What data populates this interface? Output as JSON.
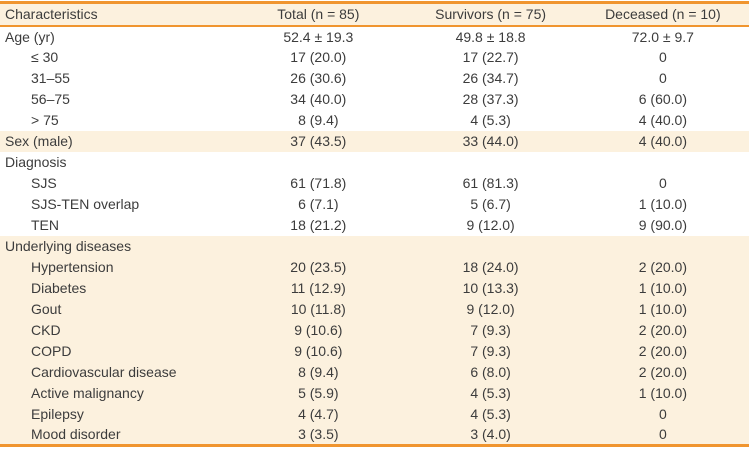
{
  "colors": {
    "accent_orange": "#F0952F",
    "band_peach": "#FCF1DE",
    "text_ink": "#3C3C3C"
  },
  "table": {
    "columns": [
      "Characteristics",
      "Total (n = 85)",
      "Survivors (n = 75)",
      "Deceased (n = 10)"
    ],
    "rows": [
      {
        "label": "Age (yr)",
        "indent": 0,
        "shaded": false,
        "values": [
          "52.4 ± 19.3",
          "49.8 ± 18.8",
          "72.0 ± 9.7"
        ]
      },
      {
        "label": "≤ 30",
        "indent": 1,
        "shaded": false,
        "values": [
          "17 (20.0)",
          "17 (22.7)",
          "0"
        ]
      },
      {
        "label": "31–55",
        "indent": 1,
        "shaded": false,
        "values": [
          "26 (30.6)",
          "26 (34.7)",
          "0"
        ]
      },
      {
        "label": "56–75",
        "indent": 1,
        "shaded": false,
        "values": [
          "34 (40.0)",
          "28 (37.3)",
          "6 (60.0)"
        ]
      },
      {
        "label": "> 75",
        "indent": 1,
        "shaded": false,
        "values": [
          "8 (9.4)",
          "4 (5.3)",
          "4 (40.0)"
        ]
      },
      {
        "label": "Sex (male)",
        "indent": 0,
        "shaded": true,
        "values": [
          "37 (43.5)",
          "33 (44.0)",
          "4 (40.0)"
        ]
      },
      {
        "label": "Diagnosis",
        "indent": 0,
        "shaded": false,
        "values": [
          "",
          "",
          ""
        ]
      },
      {
        "label": "SJS",
        "indent": 1,
        "shaded": false,
        "values": [
          "61 (71.8)",
          "61 (81.3)",
          "0"
        ]
      },
      {
        "label": "SJS-TEN overlap",
        "indent": 1,
        "shaded": false,
        "values": [
          "6 (7.1)",
          "5 (6.7)",
          "1 (10.0)"
        ]
      },
      {
        "label": "TEN",
        "indent": 1,
        "shaded": false,
        "values": [
          "18 (21.2)",
          "9 (12.0)",
          "9 (90.0)"
        ]
      },
      {
        "label": "Underlying diseases",
        "indent": 0,
        "shaded": true,
        "values": [
          "",
          "",
          ""
        ]
      },
      {
        "label": "Hypertension",
        "indent": 1,
        "shaded": true,
        "values": [
          "20 (23.5)",
          "18 (24.0)",
          "2 (20.0)"
        ]
      },
      {
        "label": "Diabetes",
        "indent": 1,
        "shaded": true,
        "values": [
          "11 (12.9)",
          "10 (13.3)",
          "1 (10.0)"
        ]
      },
      {
        "label": "Gout",
        "indent": 1,
        "shaded": true,
        "values": [
          "10 (11.8)",
          "9 (12.0)",
          "1 (10.0)"
        ]
      },
      {
        "label": "CKD",
        "indent": 1,
        "shaded": true,
        "values": [
          "9 (10.6)",
          "7 (9.3)",
          "2 (20.0)"
        ]
      },
      {
        "label": "COPD",
        "indent": 1,
        "shaded": true,
        "values": [
          "9 (10.6)",
          "7 (9.3)",
          "2 (20.0)"
        ]
      },
      {
        "label": "Cardiovascular disease",
        "indent": 1,
        "shaded": true,
        "values": [
          "8 (9.4)",
          "6 (8.0)",
          "2 (20.0)"
        ]
      },
      {
        "label": "Active malignancy",
        "indent": 1,
        "shaded": true,
        "values": [
          "5 (5.9)",
          "4 (5.3)",
          "1 (10.0)"
        ]
      },
      {
        "label": "Epilepsy",
        "indent": 1,
        "shaded": true,
        "values": [
          "4 (4.7)",
          "4 (5.3)",
          "0"
        ]
      },
      {
        "label": "Mood disorder",
        "indent": 1,
        "shaded": true,
        "values": [
          "3 (3.5)",
          "3 (4.0)",
          "0"
        ]
      }
    ]
  }
}
